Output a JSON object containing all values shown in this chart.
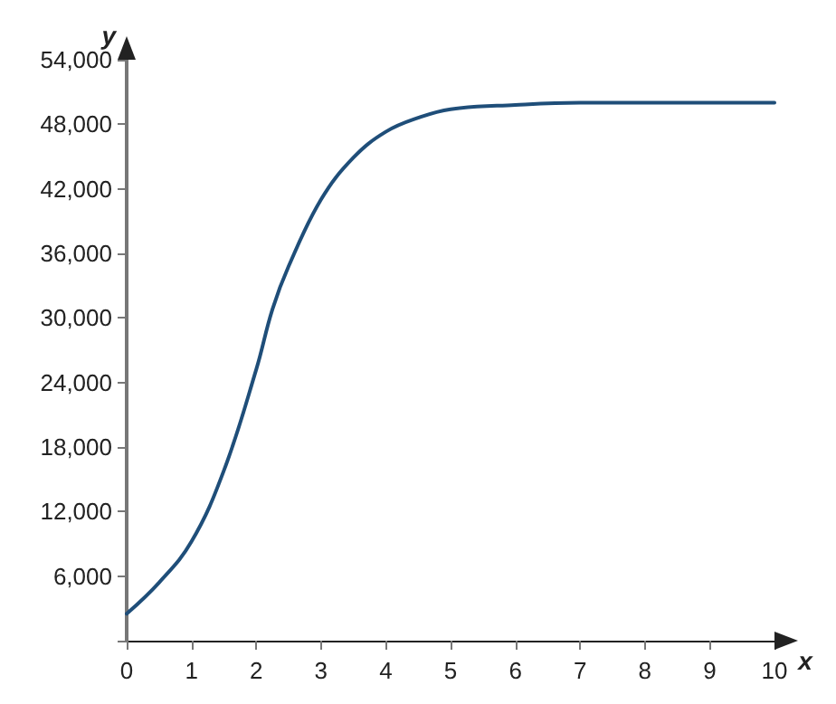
{
  "chart_data": {
    "type": "line",
    "xlabel": "x",
    "ylabel": "y",
    "x": [
      0,
      0.5,
      1,
      1.5,
      2,
      2.25,
      2.5,
      3,
      3.5,
      4,
      4.5,
      5,
      6,
      7,
      8,
      9,
      10
    ],
    "series": [
      {
        "color": "#1f4e79",
        "values": [
          2500,
          5400,
          9200,
          15800,
          25200,
          30800,
          34800,
          41000,
          44900,
          47300,
          48600,
          49400,
          49800,
          50000,
          50000,
          50000,
          50000
        ]
      }
    ],
    "xlim": [
      0,
      10
    ],
    "xticks": [
      0,
      1,
      2,
      3,
      4,
      5,
      6,
      7,
      8,
      9,
      10
    ],
    "ylim": [
      0,
      54000
    ],
    "yticks": [
      {
        "value": 0,
        "label": null
      },
      {
        "value": 6000,
        "label": "6,000"
      },
      {
        "value": 12000,
        "label": "12,000"
      },
      {
        "value": 18000,
        "label": "18,000"
      },
      {
        "value": 24000,
        "label": "24,000"
      },
      {
        "value": 30000,
        "label": "30,000"
      },
      {
        "value": 36000,
        "label": "36,000"
      },
      {
        "value": 42000,
        "label": "42,000"
      },
      {
        "value": 48000,
        "label": "48,000"
      },
      {
        "value": 54000,
        "label": "54,000"
      }
    ],
    "grid": false,
    "marker": "none",
    "line_style": "solid"
  }
}
